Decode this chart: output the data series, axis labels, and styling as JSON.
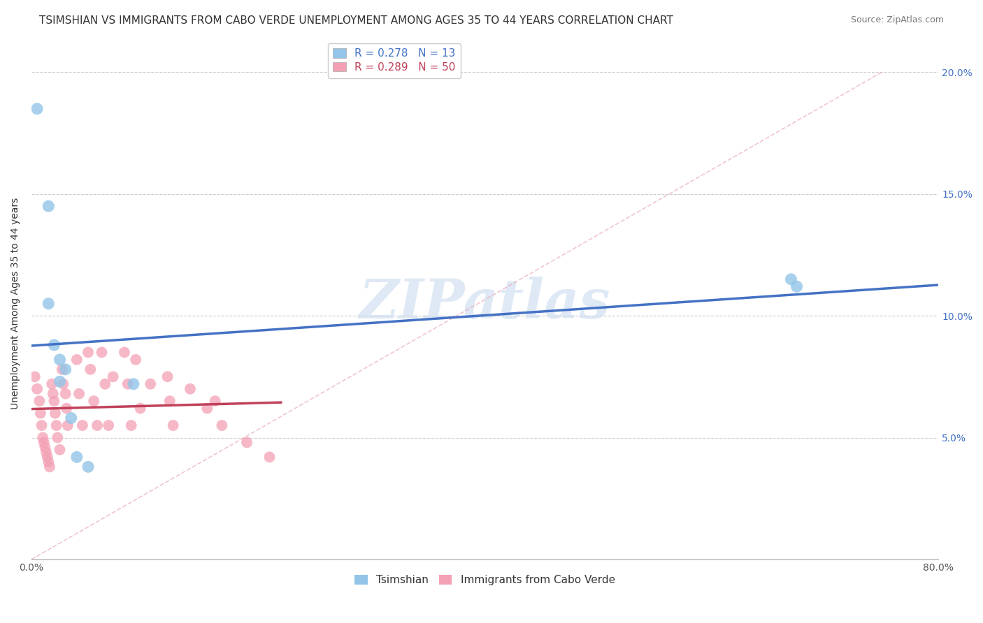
{
  "title": "TSIMSHIAN VS IMMIGRANTS FROM CABO VERDE UNEMPLOYMENT AMONG AGES 35 TO 44 YEARS CORRELATION CHART",
  "source": "Source: ZipAtlas.com",
  "ylabel": "Unemployment Among Ages 35 to 44 years",
  "xlim": [
    0.0,
    0.8
  ],
  "ylim": [
    0.0,
    0.21
  ],
  "xticks": [
    0.0,
    0.1,
    0.2,
    0.3,
    0.4,
    0.5,
    0.6,
    0.7,
    0.8
  ],
  "xticklabels": [
    "0.0%",
    "",
    "",
    "",
    "",
    "",
    "",
    "",
    "80.0%"
  ],
  "yticks": [
    0.0,
    0.05,
    0.1,
    0.15,
    0.2
  ],
  "yticklabels_right": [
    "",
    "5.0%",
    "10.0%",
    "15.0%",
    "20.0%"
  ],
  "watermark": "ZIPatlas",
  "tsimshian_color": "#92C5E8",
  "caboverde_color": "#F4A0B5",
  "tsimshian_R": 0.278,
  "tsimshian_N": 13,
  "caboverde_R": 0.289,
  "caboverde_N": 50,
  "tsimshian_line_color": "#4472C4",
  "caboverde_line_color": "#C0415A",
  "tsimshian_label": "Tsimshian",
  "caboverde_label": "Immigrants from Cabo Verde",
  "tsimshian_points_x": [
    0.005,
    0.015,
    0.015,
    0.02,
    0.025,
    0.025,
    0.03,
    0.035,
    0.04,
    0.05,
    0.67,
    0.675,
    0.09
  ],
  "tsimshian_points_y": [
    0.185,
    0.145,
    0.105,
    0.088,
    0.082,
    0.073,
    0.078,
    0.058,
    0.042,
    0.038,
    0.115,
    0.112,
    0.072
  ],
  "caboverde_points_x": [
    0.003,
    0.005,
    0.007,
    0.008,
    0.009,
    0.01,
    0.011,
    0.012,
    0.013,
    0.014,
    0.015,
    0.016,
    0.018,
    0.019,
    0.02,
    0.021,
    0.022,
    0.023,
    0.025,
    0.027,
    0.028,
    0.03,
    0.031,
    0.032,
    0.04,
    0.042,
    0.045,
    0.05,
    0.052,
    0.055,
    0.058,
    0.062,
    0.065,
    0.068,
    0.072,
    0.082,
    0.085,
    0.088,
    0.092,
    0.096,
    0.105,
    0.12,
    0.122,
    0.125,
    0.14,
    0.155,
    0.162,
    0.168,
    0.19,
    0.21
  ],
  "caboverde_points_y": [
    0.075,
    0.07,
    0.065,
    0.06,
    0.055,
    0.05,
    0.048,
    0.046,
    0.044,
    0.042,
    0.04,
    0.038,
    0.072,
    0.068,
    0.065,
    0.06,
    0.055,
    0.05,
    0.045,
    0.078,
    0.072,
    0.068,
    0.062,
    0.055,
    0.082,
    0.068,
    0.055,
    0.085,
    0.078,
    0.065,
    0.055,
    0.085,
    0.072,
    0.055,
    0.075,
    0.085,
    0.072,
    0.055,
    0.082,
    0.062,
    0.072,
    0.075,
    0.065,
    0.055,
    0.07,
    0.062,
    0.065,
    0.055,
    0.048,
    0.042
  ],
  "background_color": "#FFFFFF",
  "grid_color": "#CCCCCC",
  "title_fontsize": 11,
  "axis_label_fontsize": 10,
  "tick_fontsize": 10,
  "legend_fontsize": 11,
  "right_tick_color": "#4472C4"
}
